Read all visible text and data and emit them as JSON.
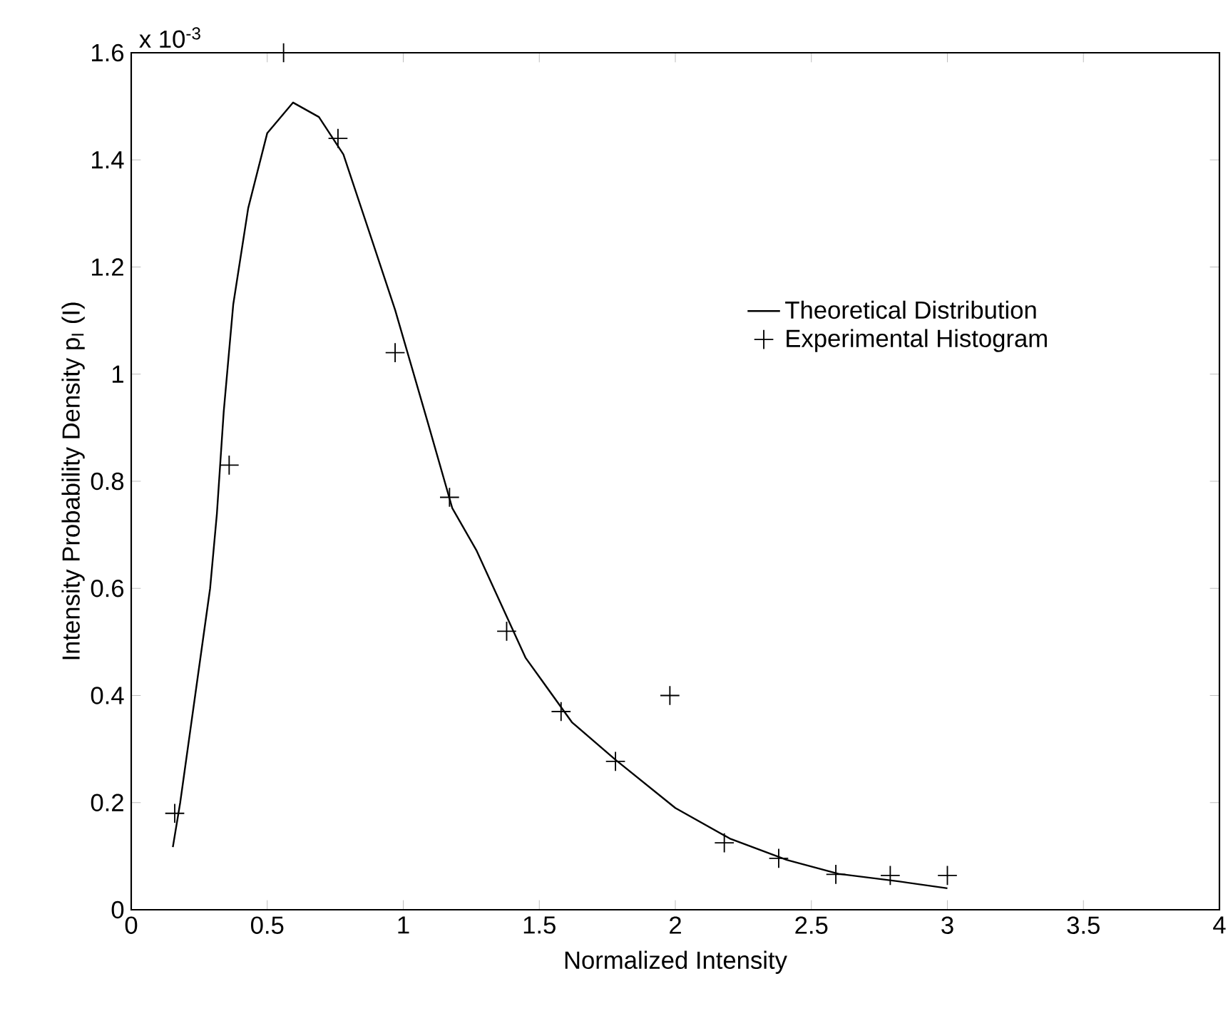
{
  "chart_data": {
    "type": "scatter",
    "xlabel": "Normalized Intensity",
    "ylabel": "Intensity Probability Density p$_{I}$ (I)",
    "annotations": [
      "x 10$^{-3}$"
    ],
    "xlim": [
      0,
      4
    ],
    "xticks": [
      0,
      0.5,
      1,
      1.5,
      2,
      2.5,
      3,
      3.5,
      4
    ],
    "ylim": [
      0,
      1.6
    ],
    "yticks": [
      0,
      0.2,
      0.4,
      0.6,
      0.8,
      1,
      1.2,
      1.4,
      1.6
    ],
    "grid": false,
    "legend": "right",
    "series": [
      {
        "name": "Theoretical Distribution",
        "type": "line",
        "color": "#000000",
        "marker": "none",
        "line_style": "solid",
        "x": [
          0.153,
          0.18,
          0.235,
          0.29,
          0.315,
          0.34,
          0.375,
          0.43,
          0.5,
          0.595,
          0.69,
          0.78,
          0.885,
          0.97,
          1.09,
          1.18,
          1.27,
          1.45,
          1.62,
          1.78,
          2.0,
          2.2,
          2.41,
          2.6,
          2.82,
          3.0
        ],
        "values": [
          0.117,
          0.2,
          0.4,
          0.6,
          0.74,
          0.93,
          1.13,
          1.31,
          1.45,
          1.507,
          1.48,
          1.41,
          1.25,
          1.12,
          0.91,
          0.75,
          0.67,
          0.47,
          0.35,
          0.28,
          0.19,
          0.133,
          0.093,
          0.067,
          0.053,
          0.04
        ]
      },
      {
        "name": "Experimental Histogram",
        "color": "#000000",
        "marker": "cross",
        "x": [
          0.16,
          0.36,
          0.56,
          0.76,
          0.97,
          1.17,
          1.38,
          1.58,
          1.78,
          1.98,
          2.18,
          2.38,
          2.59,
          2.79,
          3.0
        ],
        "values": [
          0.18,
          0.83,
          1.6,
          1.44,
          1.04,
          0.77,
          0.52,
          0.37,
          0.277,
          0.4,
          0.125,
          0.096,
          0.066,
          0.064,
          0.064
        ]
      }
    ]
  }
}
